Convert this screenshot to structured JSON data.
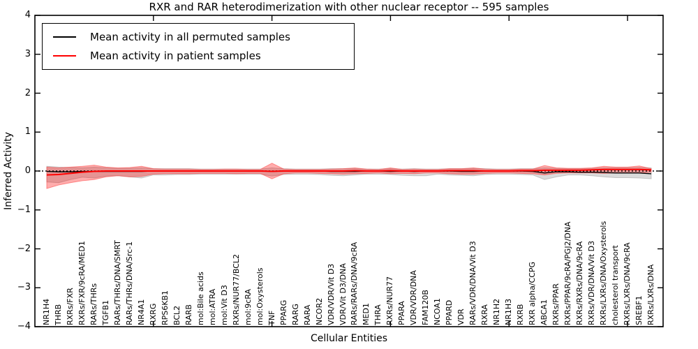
{
  "title": "RXR and RAR heterodimerization with other nuclear receptor -- 595 samples",
  "axes": {
    "ylabel": "Inferred Activity",
    "xlabel": "Cellular Entities",
    "yticks": [
      {
        "value": 4,
        "label": "4"
      },
      {
        "value": 3,
        "label": "3"
      },
      {
        "value": 2,
        "label": "2"
      },
      {
        "value": 1,
        "label": "1"
      },
      {
        "value": 0,
        "label": "0"
      },
      {
        "value": -1,
        "label": "−1"
      },
      {
        "value": -2,
        "label": "−2"
      },
      {
        "value": -3,
        "label": "−3"
      },
      {
        "value": -4,
        "label": "−4"
      }
    ]
  },
  "legend": {
    "items": [
      {
        "label": "Mean activity in all permuted samples",
        "color": "#000000"
      },
      {
        "label": "Mean activity in patient samples",
        "color": "#ff0000"
      }
    ]
  },
  "chart_data": {
    "type": "line",
    "title": "RXR and RAR heterodimerization with other nuclear receptor -- 595 samples",
    "xlabel": "Cellular Entities",
    "ylabel": "Inferred Activity",
    "ylim": [
      -4,
      4
    ],
    "grid": false,
    "legend_position": "upper left",
    "x_major_ticks": [
      10,
      20,
      30,
      40,
      50
    ],
    "zero_reference_line": {
      "y": 0,
      "style": "dotted",
      "color": "#000000"
    },
    "categories": [
      "NR1H4",
      "THRB",
      "RXRs/FXR",
      "RXRs/FXR/9cRA/MED1",
      "RARs/THRs",
      "TGFB1",
      "RARs/THRs/DNA/SMRT",
      "RARs/THRs/DNA/Src-1",
      "NR4A1",
      "RXRG",
      "RPS6KB1",
      "BCL2",
      "RARB",
      "mol:Bile acids",
      "mol:ATRA",
      "mol:Vit D3",
      "RXRs/NUR77/BCL2",
      "mol:9cRA",
      "mol:Oxysterols",
      "TNF",
      "PPARG",
      "RARG",
      "RARA",
      "NCOR2",
      "VDR/VDR/Vit D3",
      "VDR/Vit D3/DNA",
      "RARs/RARs/DNA/9cRA",
      "MED1",
      "THRA",
      "RXRs/NUR77",
      "PPARA",
      "VDR/VDR/DNA",
      "FAM120B",
      "NCOA1",
      "PPARD",
      "VDR",
      "RARs/VDR/DNA/Vit D3",
      "RXRA",
      "NR1H2",
      "NR1H3",
      "RXRB",
      "RXR alpha/CCPG",
      "ABCA1",
      "RXRs/PPAR",
      "RXRs/PPAR/9cRA/PGJ2/DNA",
      "RXRs/RXRs/DNA/9cRA",
      "RXRs/VDR/DNA/Vit D3",
      "RXRs/LXRs/DNA/Oxysterols",
      "cholesterol transport",
      "RXRs/LXRs/DNA/9cRA",
      "SREBF1",
      "RXRs/LXRs/DNA"
    ],
    "series": [
      {
        "name": "Mean activity in all permuted samples",
        "color": "#000000",
        "band_color": "#b0b0b0",
        "values": [
          -0.01,
          -0.02,
          -0.02,
          -0.01,
          -0.01,
          -0.01,
          -0.01,
          -0.01,
          -0.01,
          0,
          0,
          0,
          0,
          0,
          0,
          0,
          0,
          0,
          0,
          -0.01,
          0,
          0,
          0,
          0,
          -0.01,
          -0.01,
          -0.01,
          0,
          0,
          -0.01,
          0,
          -0.01,
          0,
          0,
          0,
          -0.01,
          -0.01,
          0,
          0,
          0,
          0,
          -0.01,
          -0.05,
          -0.02,
          -0.02,
          -0.03,
          -0.03,
          -0.04,
          -0.05,
          -0.05,
          -0.05,
          -0.07
        ],
        "band_upper": [
          0.12,
          0.1,
          0.09,
          0.08,
          0.1,
          0.08,
          0.07,
          0.07,
          0.08,
          0.06,
          0.06,
          0.06,
          0.06,
          0.05,
          0.05,
          0.05,
          0.05,
          0.05,
          0.05,
          0.08,
          0.06,
          0.05,
          0.05,
          0.05,
          0.06,
          0.06,
          0.06,
          0.05,
          0.05,
          0.06,
          0.05,
          0.06,
          0.05,
          0.05,
          0.06,
          0.06,
          0.07,
          0.06,
          0.05,
          0.05,
          0.06,
          0.06,
          0.08,
          0.07,
          0.06,
          0.06,
          0.07,
          0.08,
          0.08,
          0.08,
          0.09,
          0.08
        ],
        "band_lower": [
          -0.28,
          -0.3,
          -0.22,
          -0.16,
          -0.18,
          -0.13,
          -0.12,
          -0.15,
          -0.18,
          -0.1,
          -0.1,
          -0.09,
          -0.09,
          -0.08,
          -0.08,
          -0.08,
          -0.08,
          -0.08,
          -0.08,
          -0.13,
          -0.09,
          -0.08,
          -0.08,
          -0.09,
          -0.11,
          -0.12,
          -0.1,
          -0.08,
          -0.08,
          -0.09,
          -0.11,
          -0.12,
          -0.12,
          -0.08,
          -0.1,
          -0.11,
          -0.12,
          -0.09,
          -0.08,
          -0.08,
          -0.09,
          -0.1,
          -0.22,
          -0.15,
          -0.1,
          -0.1,
          -0.12,
          -0.15,
          -0.17,
          -0.17,
          -0.18,
          -0.2
        ]
      },
      {
        "name": "Mean activity in patient samples",
        "color": "#ff0000",
        "band_color": "#ff0000",
        "values": [
          -0.1,
          -0.09,
          -0.06,
          -0.03,
          -0.01,
          0,
          0,
          0,
          0,
          0,
          0,
          0,
          0,
          0,
          0,
          0,
          0,
          0,
          0,
          -0.01,
          0,
          0,
          0,
          0,
          0,
          0,
          0.01,
          0,
          0,
          0.01,
          0,
          0,
          0,
          0,
          0.01,
          0.01,
          0.01,
          0,
          0,
          0,
          0.01,
          0.01,
          0.02,
          0.02,
          0.02,
          0.02,
          0.03,
          0.04,
          0.04,
          0.04,
          0.04,
          0.03
        ],
        "band_upper": [
          0.1,
          0.08,
          0.1,
          0.12,
          0.15,
          0.1,
          0.08,
          0.09,
          0.12,
          0.06,
          0.05,
          0.05,
          0.05,
          0.04,
          0.04,
          0.05,
          0.05,
          0.04,
          0.04,
          0.2,
          0.05,
          0.04,
          0.04,
          0.04,
          0.05,
          0.06,
          0.08,
          0.05,
          0.04,
          0.08,
          0.04,
          0.05,
          0.04,
          0.04,
          0.06,
          0.06,
          0.08,
          0.05,
          0.04,
          0.04,
          0.05,
          0.05,
          0.14,
          0.08,
          0.07,
          0.07,
          0.08,
          0.12,
          0.1,
          0.1,
          0.13,
          0.06
        ],
        "band_lower": [
          -0.45,
          -0.36,
          -0.3,
          -0.25,
          -0.22,
          -0.15,
          -0.12,
          -0.15,
          -0.14,
          -0.08,
          -0.07,
          -0.07,
          -0.07,
          -0.06,
          -0.06,
          -0.06,
          -0.07,
          -0.06,
          -0.06,
          -0.2,
          -0.07,
          -0.05,
          -0.05,
          -0.06,
          -0.07,
          -0.08,
          -0.07,
          -0.06,
          -0.05,
          -0.07,
          -0.06,
          -0.07,
          -0.05,
          -0.05,
          -0.07,
          -0.08,
          -0.08,
          -0.06,
          -0.05,
          -0.05,
          -0.06,
          -0.07,
          -0.1,
          -0.06,
          -0.05,
          -0.05,
          -0.05,
          -0.06,
          -0.05,
          -0.05,
          -0.05,
          -0.03
        ]
      }
    ]
  }
}
